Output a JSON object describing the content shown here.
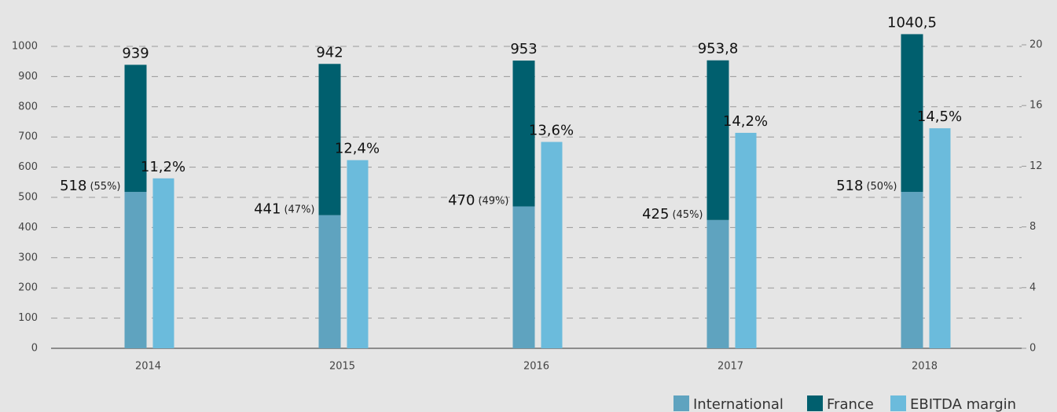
{
  "chart_data": {
    "type": "bar",
    "categories": [
      "2014",
      "2015",
      "2016",
      "2017",
      "2018"
    ],
    "series": [
      {
        "name": "International",
        "color": "#5fa3bf",
        "values": [
          518,
          441,
          470,
          425,
          518
        ],
        "value_labels": [
          "518",
          "441",
          "470",
          "425",
          "518"
        ],
        "shares": [
          55,
          47,
          49,
          45,
          50
        ],
        "share_labels": [
          "(55%)",
          "(47%)",
          "(49%)",
          "(45%)",
          "(50%)"
        ]
      },
      {
        "name": "France",
        "color": "#005f6e",
        "values": [
          421,
          501,
          483,
          528.8,
          522.5
        ]
      },
      {
        "name": "EBITDA margin",
        "color": "#6bbbdc",
        "axis": "y2",
        "values": [
          11.2,
          12.4,
          13.6,
          14.2,
          14.5
        ],
        "value_labels": [
          "11,2%",
          "12,4%",
          "13,6%",
          "14,2%",
          "14,5%"
        ]
      }
    ],
    "totals": [
      939,
      942,
      953,
      953.8,
      1040.5
    ],
    "total_labels": [
      "939",
      "942",
      "953",
      "953,8",
      "1040,5"
    ],
    "ylim": [
      0,
      1000
    ],
    "yticks": [
      0,
      100,
      200,
      300,
      400,
      500,
      600,
      700,
      800,
      900,
      1000
    ],
    "y2lim": [
      0,
      20
    ],
    "y2ticks": [
      0,
      4,
      8,
      12,
      16,
      20
    ],
    "grid": true,
    "legend": "bottom-right"
  }
}
